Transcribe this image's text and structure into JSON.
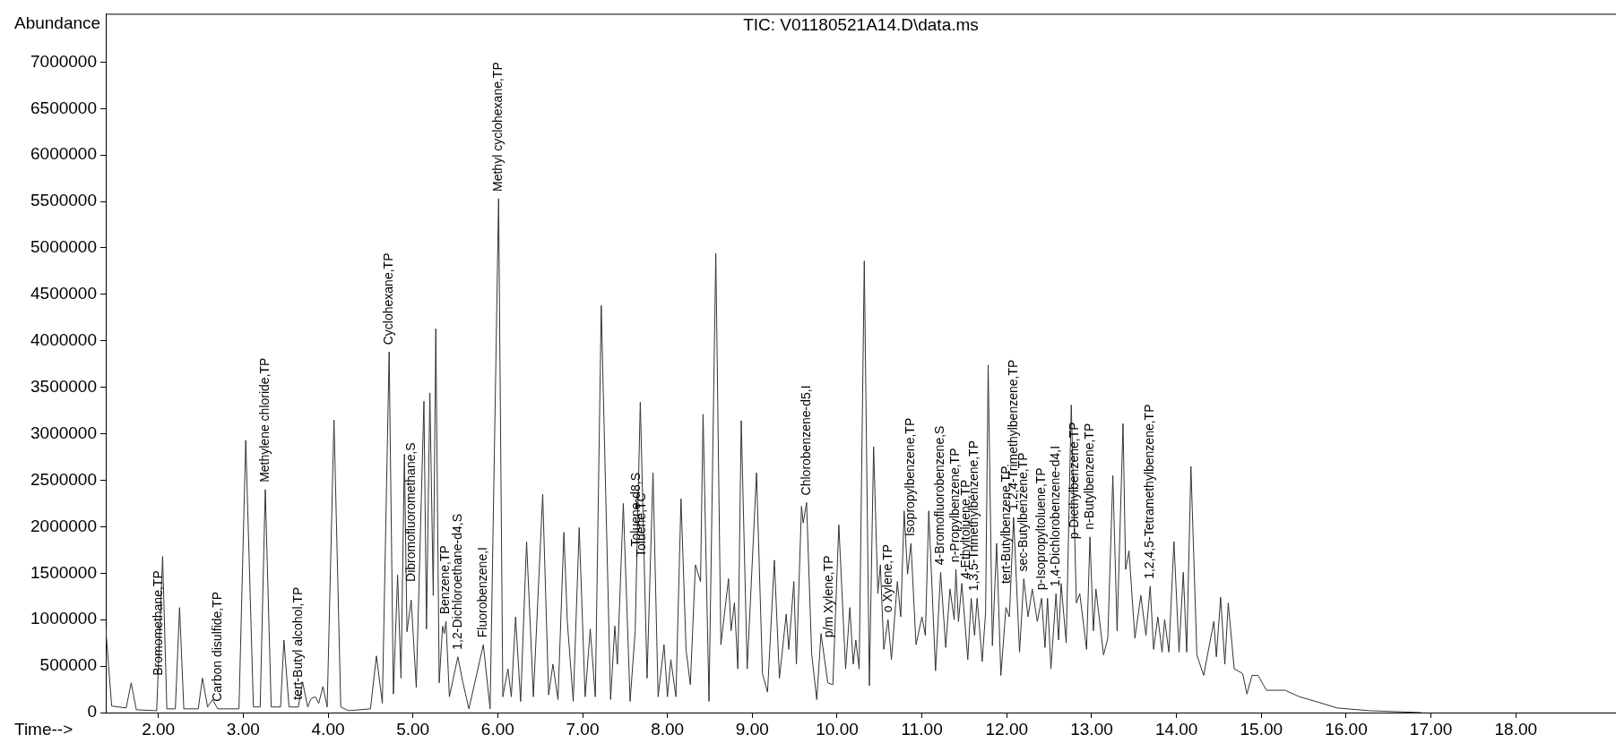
{
  "chart_data": {
    "type": "line",
    "title": "TIC: V01180521A14.D\\data.ms",
    "xlabel": "Time-->",
    "ylabel": "Abundance",
    "x": [
      1.38,
      1.39,
      1.45,
      1.62,
      1.68,
      1.74,
      1.98,
      2.05,
      2.1,
      2.2,
      2.25,
      2.3,
      2.47,
      2.52,
      2.58,
      2.64,
      2.7,
      2.95,
      3.03,
      3.12,
      3.2,
      3.26,
      3.33,
      3.44,
      3.48,
      3.54,
      3.65,
      3.7,
      3.76,
      3.8,
      3.85,
      3.89,
      3.94,
      3.99,
      4.07,
      4.15,
      4.24,
      4.5,
      4.57,
      4.64,
      4.72,
      4.77,
      4.82,
      4.86,
      4.9,
      4.93,
      4.98,
      5.04,
      5.13,
      5.16,
      5.2,
      5.24,
      5.27,
      5.31,
      5.35,
      5.37,
      5.39,
      5.43,
      5.53,
      5.59,
      5.66,
      5.83,
      5.91,
      6.01,
      6.06,
      6.12,
      6.16,
      6.21,
      6.27,
      6.34,
      6.42,
      6.53,
      6.6,
      6.65,
      6.71,
      6.78,
      6.82,
      6.89,
      6.96,
      7.03,
      7.09,
      7.15,
      7.22,
      7.33,
      7.38,
      7.41,
      7.48,
      7.56,
      7.62,
      7.68,
      7.76,
      7.83,
      7.89,
      7.96,
      8.0,
      8.04,
      8.1,
      8.16,
      8.22,
      8.27,
      8.33,
      8.39,
      8.42,
      8.49,
      8.57,
      8.63,
      8.72,
      8.75,
      8.79,
      8.83,
      8.87,
      8.94,
      9.05,
      9.12,
      9.18,
      9.26,
      9.32,
      9.4,
      9.43,
      9.49,
      9.52,
      9.58,
      9.6,
      9.64,
      9.7,
      9.76,
      9.81,
      9.89,
      9.95,
      10.02,
      10.1,
      10.15,
      10.19,
      10.22,
      10.26,
      10.32,
      10.38,
      10.43,
      10.48,
      10.51,
      10.55,
      10.6,
      10.64,
      10.71,
      10.75,
      10.79,
      10.83,
      10.87,
      10.93,
      11.0,
      11.04,
      11.08,
      11.16,
      11.22,
      11.28,
      11.33,
      11.38,
      11.4,
      11.43,
      11.47,
      11.54,
      11.58,
      11.62,
      11.65,
      11.71,
      11.75,
      11.78,
      11.83,
      11.88,
      11.93,
      11.99,
      12.03,
      12.08,
      12.15,
      12.2,
      12.25,
      12.3,
      12.36,
      12.41,
      12.45,
      12.48,
      12.52,
      12.58,
      12.61,
      12.64,
      12.7,
      12.76,
      12.82,
      12.86,
      12.94,
      12.98,
      13.02,
      13.05,
      13.14,
      13.19,
      13.25,
      13.3,
      13.37,
      13.4,
      13.44,
      13.51,
      13.58,
      13.64,
      13.69,
      13.73,
      13.78,
      13.83,
      13.86,
      13.91,
      13.97,
      14.03,
      14.08,
      14.12,
      14.17,
      14.24,
      14.32,
      14.44,
      14.47,
      14.52,
      14.57,
      14.61,
      14.68,
      14.78,
      14.83,
      14.89,
      14.96,
      15.06,
      15.28,
      15.45,
      15.64,
      15.89,
      16.27,
      16.88
    ],
    "series": [
      {
        "color": "#333333",
        "values": [
          900000,
          900000,
          70000,
          50000,
          320000,
          30000,
          20000,
          1680000,
          40000,
          40000,
          1130000,
          40000,
          40000,
          370000,
          60000,
          140000,
          40000,
          40000,
          2930000,
          60000,
          60000,
          2400000,
          60000,
          60000,
          780000,
          60000,
          60000,
          330000,
          60000,
          150000,
          170000,
          100000,
          280000,
          60000,
          3150000,
          60000,
          20000,
          40000,
          610000,
          100000,
          3880000,
          200000,
          1480000,
          370000,
          2780000,
          870000,
          1210000,
          270000,
          3350000,
          900000,
          3440000,
          1260000,
          4130000,
          320000,
          930000,
          850000,
          980000,
          170000,
          600000,
          320000,
          40000,
          730000,
          40000,
          5530000,
          170000,
          470000,
          170000,
          1030000,
          120000,
          1840000,
          170000,
          2350000,
          190000,
          520000,
          140000,
          1940000,
          980000,
          120000,
          1990000,
          170000,
          900000,
          170000,
          4380000,
          140000,
          930000,
          520000,
          2250000,
          120000,
          880000,
          3340000,
          370000,
          2580000,
          170000,
          730000,
          170000,
          570000,
          170000,
          2300000,
          670000,
          300000,
          1590000,
          1410000,
          3210000,
          120000,
          4940000,
          730000,
          1440000,
          880000,
          1180000,
          470000,
          3140000,
          470000,
          2580000,
          420000,
          220000,
          1640000,
          370000,
          1060000,
          680000,
          1410000,
          520000,
          2220000,
          2040000,
          2260000,
          630000,
          140000,
          850000,
          320000,
          300000,
          2020000,
          470000,
          1130000,
          520000,
          780000,
          470000,
          4860000,
          290000,
          2860000,
          1280000,
          1590000,
          680000,
          1000000,
          570000,
          1410000,
          1030000,
          2170000,
          1490000,
          1820000,
          730000,
          1030000,
          830000,
          2170000,
          450000,
          1510000,
          700000,
          1330000,
          1000000,
          1540000,
          980000,
          1390000,
          570000,
          1230000,
          830000,
          1230000,
          550000,
          1080000,
          3740000,
          720000,
          1820000,
          400000,
          1130000,
          1030000,
          2100000,
          650000,
          1440000,
          1030000,
          1330000,
          980000,
          1230000,
          700000,
          1230000,
          470000,
          1280000,
          780000,
          1390000,
          750000,
          3310000,
          1180000,
          1280000,
          680000,
          1890000,
          880000,
          1330000,
          620000,
          800000,
          2550000,
          880000,
          3110000,
          1540000,
          1740000,
          800000,
          1260000,
          830000,
          1360000,
          680000,
          1030000,
          650000,
          1000000,
          650000,
          1840000,
          650000,
          1510000,
          650000,
          2650000,
          620000,
          400000,
          980000,
          600000,
          1240000,
          520000,
          1180000,
          470000,
          420000,
          200000,
          400000,
          400000,
          240000,
          240000,
          170000,
          120000,
          50000,
          20000,
          0
        ]
      }
    ],
    "xlim": [
      1.38,
      19.18
    ],
    "xticks": [
      {
        "value": 2,
        "label": "2.00"
      },
      {
        "value": 3,
        "label": "3.00"
      },
      {
        "value": 4,
        "label": "4.00"
      },
      {
        "value": 5,
        "label": "5.00"
      },
      {
        "value": 6,
        "label": "6.00"
      },
      {
        "value": 7,
        "label": "7.00"
      },
      {
        "value": 8,
        "label": "8.00"
      },
      {
        "value": 9,
        "label": "9.00"
      },
      {
        "value": 10,
        "label": "10.00"
      },
      {
        "value": 11,
        "label": "11.00"
      },
      {
        "value": 12,
        "label": "12.00"
      },
      {
        "value": 13,
        "label": "13.00"
      },
      {
        "value": 14,
        "label": "14.00"
      },
      {
        "value": 15,
        "label": "15.00"
      },
      {
        "value": 16,
        "label": "16.00"
      },
      {
        "value": 17,
        "label": "17.00"
      },
      {
        "value": 18,
        "label": "18.00"
      }
    ],
    "ylim": [
      0,
      7520000
    ],
    "yticks": [
      0,
      500000,
      1000000,
      1500000,
      2000000,
      2500000,
      3000000,
      3500000,
      4000000,
      4500000,
      5000000,
      5500000,
      6000000,
      6500000,
      7000000
    ],
    "annotations": [
      {
        "text": "Bromomethane,TP",
        "x": 2.01,
        "y": 320000
      },
      {
        "text": "Carbon disulfide,TP",
        "x": 2.7,
        "y": 40000
      },
      {
        "text": "Methylene chloride,TP",
        "x": 3.26,
        "y": 2400000
      },
      {
        "text": "tert-Butyl alcohol,TP",
        "x": 3.65,
        "y": 60000
      },
      {
        "text": "Cyclohexane,TP",
        "x": 4.72,
        "y": 3880000
      },
      {
        "text": "Dibromofluoromethane,S",
        "x": 4.98,
        "y": 1330000
      },
      {
        "text": "Benzene,TP",
        "x": 5.39,
        "y": 980000
      },
      {
        "text": "1,2-Dichloroethane-d4,S",
        "x": 5.53,
        "y": 600000
      },
      {
        "text": "Fluorobenzene,I",
        "x": 5.83,
        "y": 730000
      },
      {
        "text": "Methyl cyclohexane,TP",
        "x": 6.01,
        "y": 5530000
      },
      {
        "text": "Toluene-d8,S",
        "x": 7.64,
        "y": 1710000
      },
      {
        "text": "Toluene,TC",
        "x": 7.7,
        "y": 1600000
      },
      {
        "text": "Chlorobenzene-d5,I",
        "x": 9.64,
        "y": 2260000
      },
      {
        "text": "p/m Xylene,TP",
        "x": 9.91,
        "y": 730000
      },
      {
        "text": "o Xylene,TP",
        "x": 10.6,
        "y": 1000000
      },
      {
        "text": "Isopropylbenzene,TP",
        "x": 10.87,
        "y": 1820000
      },
      {
        "text": "4-Bromofluorobenzene,S",
        "x": 11.22,
        "y": 1510000
      },
      {
        "text": "n-Propylbenzene,TP",
        "x": 11.4,
        "y": 1540000
      },
      {
        "text": "4-Ethyltoluene,TP",
        "x": 11.52,
        "y": 1360000
      },
      {
        "text": "1,3,5-Trimethylbenzene,TP",
        "x": 11.62,
        "y": 1230000
      },
      {
        "text": "tert-Butylbenzene,TP",
        "x": 12.0,
        "y": 1310000
      },
      {
        "text": "1,2,4-Trimethylbenzene,TP",
        "x": 12.08,
        "y": 2100000
      },
      {
        "text": "sec-Butylbenzene,TP",
        "x": 12.2,
        "y": 1440000
      },
      {
        "text": "p-Isopropyltoluene,TP",
        "x": 12.41,
        "y": 1240000
      },
      {
        "text": "1,4-Dichlorobenzene-d4,I",
        "x": 12.58,
        "y": 1280000
      },
      {
        "text": "p-Diethylbenzene,TP",
        "x": 12.8,
        "y": 1790000
      },
      {
        "text": "n-Butylbenzene,TP",
        "x": 12.98,
        "y": 1890000
      },
      {
        "text": "1,2,4,5-Tetramethylbenzene,TP",
        "x": 13.69,
        "y": 1360000
      }
    ],
    "grid": false,
    "legend": false,
    "marker": "none",
    "line_style": "solid"
  }
}
